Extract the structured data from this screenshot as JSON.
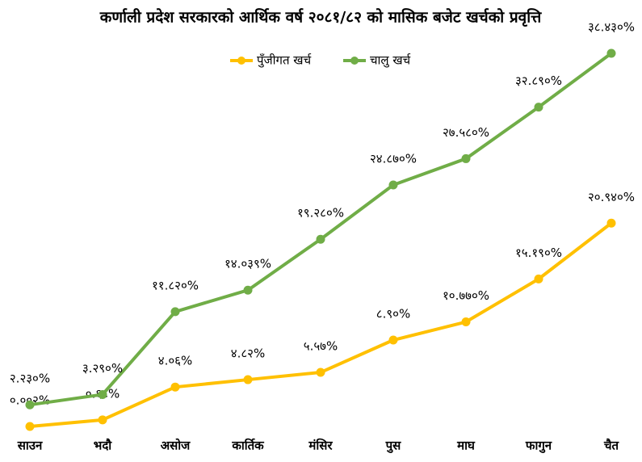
{
  "chart_data": {
    "type": "line",
    "title": "कर्णाली प्रदेश सरकारको आर्थिक वर्ष २०८१/८२ को मासिक बजेट खर्चको प्रवृत्ति",
    "categories": [
      "साउन",
      "भदौ",
      "असोज",
      "कार्तिक",
      "मंसिर",
      "पुस",
      "माघ",
      "फागुन",
      "चैत"
    ],
    "series": [
      {
        "name": "पुँजीगत खर्च",
        "color": "#ffc000",
        "values": [
          0.002,
          0.68,
          4.06,
          4.82,
          5.57,
          8.9,
          10.77,
          15.19,
          20.94
        ],
        "value_labels": [
          "०.००२%",
          "०.६८%",
          "४.०६%",
          "४.८२%",
          "५.५७%",
          "८.९०%",
          "१०.७७०%",
          "१५.१९०%",
          "२०.९४०%"
        ]
      },
      {
        "name": "चालु खर्च",
        "color": "#70ad47",
        "values": [
          2.23,
          3.29,
          11.82,
          14.039,
          19.28,
          24.87,
          27.58,
          32.89,
          38.43
        ],
        "value_labels": [
          "२.२३०%",
          "३.२९०%",
          "११.८२०%",
          "१४.०३९%",
          "१९.२८०%",
          "२४.८७०%",
          "२७.५८०%",
          "३२.८९०%",
          "३८.४३०%"
        ]
      }
    ],
    "legend": "top"
  }
}
